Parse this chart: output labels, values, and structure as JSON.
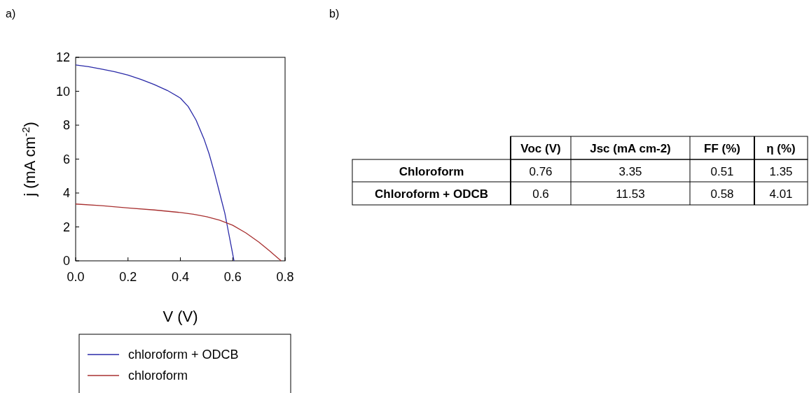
{
  "chart_data": [
    {
      "type": "line",
      "xlabel": "V (V)",
      "ylabel": "j (mA cm$^{-2}$)",
      "xlim": [
        0,
        0.8
      ],
      "ylim": [
        0,
        12
      ],
      "xticks": [
        {
          "value": 0,
          "label": "0.0"
        },
        0.2,
        0.4,
        0.6,
        0.8
      ],
      "yticks": [
        0,
        2,
        4,
        6,
        8,
        10,
        12
      ],
      "legend": "bottom",
      "grid": false,
      "marker": "none",
      "annotations": [
        "a)"
      ],
      "series": [
        {
          "name": "chloroform + ODCB",
          "color": "#2a2aa8",
          "x": [
            0,
            0.05,
            0.1,
            0.15,
            0.2,
            0.25,
            0.3,
            0.35,
            0.4,
            0.43,
            0.46,
            0.49,
            0.51,
            0.53,
            0.55,
            0.57,
            0.58,
            0.59,
            0.6,
            0.605
          ],
          "values": [
            11.55,
            11.45,
            11.3,
            11.15,
            10.95,
            10.7,
            10.4,
            10.05,
            9.6,
            9.1,
            8.3,
            7.2,
            6.3,
            5.2,
            4.0,
            2.8,
            2.0,
            1.2,
            0.4,
            0
          ]
        },
        {
          "name": "chloroform",
          "color": "#a83030",
          "x": [
            0,
            0.1,
            0.2,
            0.3,
            0.4,
            0.45,
            0.5,
            0.55,
            0.6,
            0.65,
            0.7,
            0.74,
            0.77,
            0.785
          ],
          "values": [
            3.35,
            3.25,
            3.12,
            3.0,
            2.85,
            2.75,
            2.6,
            2.4,
            2.1,
            1.65,
            1.1,
            0.6,
            0.2,
            0
          ]
        }
      ]
    },
    {
      "type": "other",
      "annotations": [
        "b)"
      ],
      "categories": [
        "Voc (V)",
        "Jsc (mA cm-2)",
        "FF (%)",
        "η (%)"
      ],
      "y_categories": [
        "Chloroform",
        "Chloroform + ODCB"
      ],
      "cell_labels": [
        [
          "0.76",
          "3.35",
          "0.51",
          "1.35"
        ],
        [
          "0.6",
          "11.53",
          "0.58",
          "4.01"
        ]
      ]
    }
  ]
}
